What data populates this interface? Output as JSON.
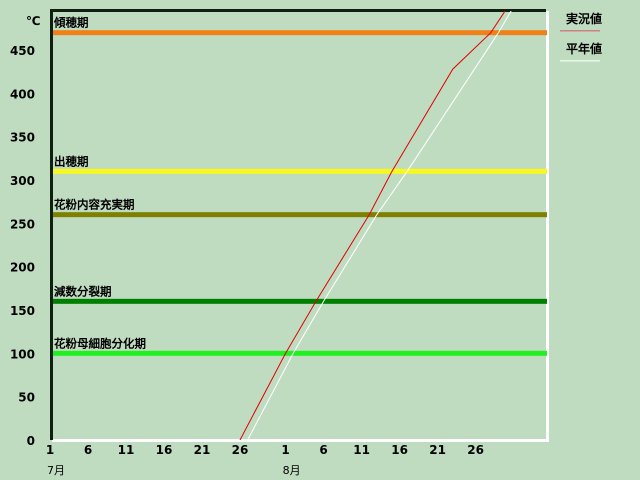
{
  "chart_data": {
    "type": "line",
    "ylabel": "℃",
    "ylim": [
      0,
      495
    ],
    "yticks": [
      0,
      50,
      100,
      150,
      200,
      250,
      300,
      350,
      400,
      450
    ],
    "xlim": [
      "7/1",
      "9/4"
    ],
    "xticks": [
      {
        "date": "7/1",
        "label": "1"
      },
      {
        "date": "7/6",
        "label": "6"
      },
      {
        "date": "7/11",
        "label": "11"
      },
      {
        "date": "7/16",
        "label": "16"
      },
      {
        "date": "7/21",
        "label": "21"
      },
      {
        "date": "7/26",
        "label": "26"
      },
      {
        "date": "8/1",
        "label": "1"
      },
      {
        "date": "8/6",
        "label": "6"
      },
      {
        "date": "8/11",
        "label": "11"
      },
      {
        "date": "8/16",
        "label": "16"
      },
      {
        "date": "8/21",
        "label": "21"
      },
      {
        "date": "8/26",
        "label": "26"
      }
    ],
    "month_labels": [
      {
        "date": "7/1",
        "label": "7月"
      },
      {
        "date": "8/1",
        "label": "8月"
      }
    ],
    "thresholds": [
      {
        "name": "傾穂期",
        "value": 470,
        "color": "#f08018"
      },
      {
        "name": "出穂期",
        "value": 310,
        "color": "#f8f820"
      },
      {
        "name": "花粉内容充実期",
        "value": 260,
        "color": "#808000"
      },
      {
        "name": "減数分裂期",
        "value": 160,
        "color": "#008000"
      },
      {
        "name": "花粉母細胞分化期",
        "value": 100,
        "color": "#20f020"
      }
    ],
    "series": [
      {
        "name": "実況値",
        "color": "#e00000",
        "legend_color": "#d08080",
        "points": [
          [
            "7/26",
            0
          ],
          [
            "8/1",
            100
          ],
          [
            "8/5",
            160
          ],
          [
            "8/12",
            260
          ],
          [
            "8/15",
            310
          ],
          [
            "8/23",
            428
          ],
          [
            "8/28",
            470
          ],
          [
            "8/31",
            510
          ]
        ]
      },
      {
        "name": "平年値",
        "color": "#ffffff",
        "legend_color": "#e8f8e8",
        "points": [
          [
            "7/27",
            0
          ],
          [
            "8/2",
            100
          ],
          [
            "8/6",
            160
          ],
          [
            "8/13",
            260
          ],
          [
            "8/17",
            310
          ],
          [
            "8/29",
            470
          ],
          [
            "8/31",
            500
          ]
        ]
      }
    ],
    "grid": false,
    "legend": "right"
  }
}
